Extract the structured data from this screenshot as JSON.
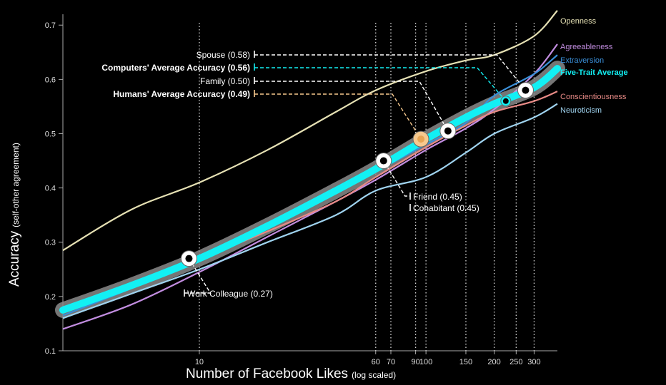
{
  "chart_data": {
    "type": "line",
    "title": "",
    "xlabel": "Number of Facebook Likes",
    "xlabel_note": "(log scaled)",
    "ylabel": "Accuracy",
    "ylabel_note": "(self-other agreement)",
    "x_scale": "log",
    "xlim": [
      2.5,
      380
    ],
    "ylim": [
      0.1,
      0.72
    ],
    "x_ticks": [
      10,
      60,
      70,
      90,
      100,
      150,
      200,
      250,
      300
    ],
    "y_ticks": [
      0.1,
      0.2,
      0.3,
      0.4,
      0.5,
      0.6,
      0.7
    ],
    "grid": "vertical dotted lines at x ticks",
    "background": "#000000",
    "series": [
      {
        "name": "Openness",
        "color": "#e6e1b4",
        "x": [
          2.5,
          5,
          10,
          20,
          40,
          60,
          100,
          150,
          200,
          300,
          380
        ],
        "y": [
          0.285,
          0.36,
          0.41,
          0.47,
          0.54,
          0.58,
          0.615,
          0.635,
          0.645,
          0.68,
          0.727
        ]
      },
      {
        "name": "Agreeableness",
        "color": "#c28de0",
        "x": [
          2.5,
          5,
          10,
          20,
          40,
          60,
          100,
          150,
          200,
          300,
          380
        ],
        "y": [
          0.14,
          0.185,
          0.245,
          0.31,
          0.375,
          0.415,
          0.47,
          0.51,
          0.545,
          0.61,
          0.665
        ]
      },
      {
        "name": "Extraversion",
        "color": "#3a8fd8",
        "x": [
          2.5,
          5,
          10,
          20,
          40,
          60,
          100,
          150,
          200,
          300,
          380
        ],
        "y": [
          0.165,
          0.215,
          0.27,
          0.33,
          0.39,
          0.43,
          0.48,
          0.52,
          0.57,
          0.61,
          0.645
        ]
      },
      {
        "name": "Five-Trait Average",
        "color": "#12f0f4",
        "x": [
          2.5,
          5,
          10,
          20,
          40,
          60,
          100,
          150,
          200,
          300,
          380
        ],
        "y": [
          0.175,
          0.22,
          0.27,
          0.33,
          0.395,
          0.435,
          0.49,
          0.53,
          0.555,
          0.585,
          0.62
        ]
      },
      {
        "name": "Conscientiousness",
        "color": "#e88a86",
        "x": [
          2.5,
          5,
          10,
          20,
          40,
          60,
          100,
          150,
          200,
          300,
          380
        ],
        "y": [
          0.18,
          0.225,
          0.27,
          0.32,
          0.375,
          0.42,
          0.475,
          0.515,
          0.54,
          0.56,
          0.578
        ]
      },
      {
        "name": "Neuroticism",
        "color": "#9fd3ef",
        "x": [
          2.5,
          5,
          10,
          20,
          40,
          60,
          100,
          150,
          200,
          300,
          380
        ],
        "y": [
          0.16,
          0.205,
          0.25,
          0.3,
          0.35,
          0.395,
          0.42,
          0.465,
          0.5,
          0.53,
          0.555
        ]
      }
    ],
    "markers": [
      {
        "label": "Work Colleague (0.27)",
        "x": 9,
        "y": 0.27,
        "style": "white"
      },
      {
        "label": "Friend (0.45)",
        "x": 65,
        "y": 0.45,
        "style": "white"
      },
      {
        "label": "Cohabitant (0.45)",
        "x": 65,
        "y": 0.45,
        "style": "white"
      },
      {
        "label": "Humans' Average Accuracy (0.49)",
        "x": 95,
        "y": 0.49,
        "style": "human"
      },
      {
        "label": "Family (0.50)",
        "x": 125,
        "y": 0.505,
        "style": "white"
      },
      {
        "label": "Computers' Average Accuracy (0.56)",
        "x": 225,
        "y": 0.56,
        "style": "computer"
      },
      {
        "label": "Spouse (0.58)",
        "x": 275,
        "y": 0.58,
        "style": "white"
      }
    ],
    "callout_colors": {
      "white": "#ffffff",
      "human": "#f7c98e",
      "computer": "#12f0f4"
    }
  }
}
